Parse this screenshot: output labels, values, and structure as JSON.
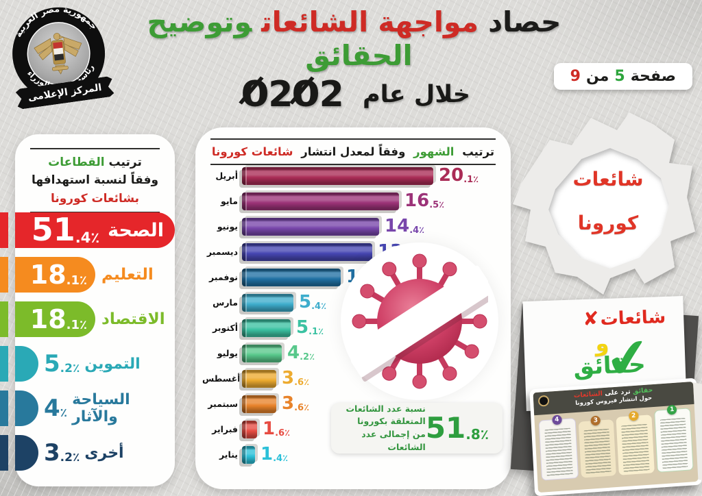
{
  "page": {
    "background": "#dddcd9"
  },
  "logo": {
    "arc_top": "جمهورية مصر العربية",
    "arc_bottom": "رئاسة مجلس الوزراء",
    "ribbon": "المركز الإعلامى"
  },
  "header": {
    "title_parts": [
      {
        "text": "حصاد",
        "color": "#1c1c1a"
      },
      {
        "text": "مواجهة الشائعات",
        "color": "#ce2b25"
      },
      {
        "text": "وتوضيح الحقائق",
        "color": "#3d9c35"
      }
    ],
    "subtitle": "خلال عام",
    "year": "2020",
    "page_badge": {
      "word_page": "صفحة",
      "current": "5",
      "word_of": "من",
      "total": "9",
      "current_color": "#2ea53d",
      "total_color": "#ce2b25"
    }
  },
  "summary_note": {
    "lines": [
      "نسبة عدد الشائعات",
      "المتعلقة بكورونا",
      "من إجمالى عدد الشائعات"
    ],
    "value": "51.8",
    "unit": "٪",
    "text_color": "#33953f",
    "accent_color": "#2e9e3f"
  },
  "torn_sticker": {
    "line1": "شائعات",
    "line2": "كورونا",
    "color": "#e03527"
  },
  "facts_card": {
    "rumors": "شائعات",
    "cross": "✘",
    "and_word": "و",
    "facts": "حقائق",
    "check": "✔",
    "rumors_color": "#e02a1f",
    "and_color": "#f3d411",
    "facts_color": "#2fae44"
  },
  "tent_card": {
    "title_green": "حقائق",
    "title_mid": "ترد على",
    "title_red": "الشائعات",
    "subtitle": "حول انتشار فيروس كورونا",
    "steps": [
      {
        "num": "1",
        "color": "#35a448"
      },
      {
        "num": "2",
        "color": "#e5a92a"
      },
      {
        "num": "3",
        "color": "#b06f2c"
      },
      {
        "num": "4",
        "color": "#6d4b9b"
      }
    ]
  },
  "chart_data": [
    {
      "type": "bar",
      "orientation": "horizontal",
      "title": "ترتيب القطاعات وفقاً لنسبة استهدافها بشائعات كورونا",
      "title_parts": [
        {
          "text": "ترتيب",
          "color": "#1c1c1a"
        },
        {
          "text": "القطاعات",
          "color": "#3fae3b"
        },
        {
          "text": "وفقاً لنسبة استهدافها",
          "color": "#1c1c1a"
        },
        {
          "text": "بشائعات كورونا",
          "color": "#e3372c"
        }
      ],
      "categories": [
        "الصحة",
        "التعليم",
        "الاقتصاد",
        "التموين",
        "السياحة والآثار",
        "أخرى"
      ],
      "values": [
        51.4,
        18.1,
        18.1,
        5.2,
        4,
        3.2
      ],
      "unit": "٪",
      "colors": [
        "#e5262a",
        "#f58b1f",
        "#7cbb2a",
        "#2aa9b6",
        "#28799c",
        "#1d4265"
      ],
      "xlim": [
        0,
        51.4
      ],
      "grid": false,
      "value_labels": true
    },
    {
      "type": "bar",
      "orientation": "horizontal",
      "title": "ترتيب الشهور وفقاً لمعدل انتشار شائعات كورونا",
      "title_parts": [
        {
          "text": "ترتيب",
          "color": "#1c1c1a"
        },
        {
          "text": "الشهور",
          "color": "#45b649"
        },
        {
          "text": "وفقاً لمعدل انتشار",
          "color": "#1c1c1a"
        },
        {
          "text": "شائعات كورونا",
          "color": "#e2372c"
        }
      ],
      "categories": [
        "أبريل",
        "مايو",
        "يونيو",
        "ديسمبر",
        "نوفمبر",
        "مارس",
        "أكتوبر",
        "يوليو",
        "أغسطس",
        "سبتمبر",
        "فبراير",
        "يناير"
      ],
      "values": [
        20.1,
        16.5,
        14.4,
        13.7,
        10.4,
        5.4,
        5.1,
        4.2,
        3.6,
        3.6,
        1.6,
        1.4
      ],
      "unit": "٪",
      "colors": [
        "#aa2c56",
        "#9c3378",
        "#7846ab",
        "#4646b2",
        "#2171a4",
        "#3eadcc",
        "#3bc2a2",
        "#58c88b",
        "#edab2f",
        "#e8832a",
        "#e74c42",
        "#2cc0d8"
      ],
      "xlim": [
        0,
        20.1
      ],
      "grid": false,
      "value_labels": true
    }
  ]
}
